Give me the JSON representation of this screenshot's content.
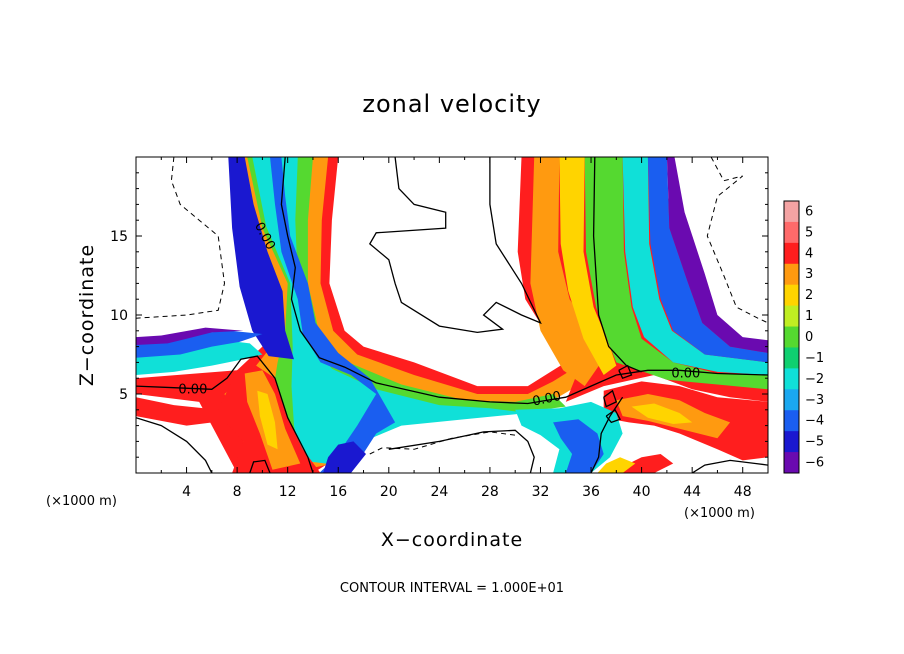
{
  "chart_data": {
    "type": "heatmap",
    "title": "zonal velocity",
    "xlabel": "X−coordinate",
    "ylabel": "Z−coordinate",
    "x_unit_left": "(×1000 m)",
    "x_unit_right": "(×1000 m)",
    "footer": "CONTOUR INTERVAL = 1.000E+01",
    "xlim": [
      0,
      50
    ],
    "ylim": [
      0,
      20
    ],
    "x_ticks": [
      "4",
      "8",
      "12",
      "16",
      "20",
      "24",
      "28",
      "32",
      "36",
      "40",
      "44",
      "48"
    ],
    "y_ticks": [
      "5",
      "10",
      "15"
    ],
    "colorbar_ticks": [
      "6",
      "5",
      "4",
      "3",
      "2",
      "1",
      "0",
      "−1",
      "−2",
      "−3",
      "−4",
      "−5",
      "−6"
    ],
    "colorbar_range": [
      -6,
      6
    ],
    "contour_labels": [
      {
        "text": "0.00",
        "x": 10.2,
        "z": 15
      },
      {
        "text": "0.00",
        "x": 4.5,
        "z": 5.3
      },
      {
        "text": "0.00",
        "x": 32.5,
        "z": 4.7
      },
      {
        "text": "0.00",
        "x": 43.5,
        "z": 6.3
      }
    ],
    "colors": {
      "6": "#f4a3a3",
      "5": "#ff6a6a",
      "4": "#ff1e1e",
      "3": "#ff9a10",
      "2": "#ffd400",
      "1": "#c0ee22",
      "0": "#55d930",
      "-1": "#10d070",
      "-2": "#10e0d8",
      "-3": "#1aa8f0",
      "-4": "#1a5ef0",
      "-5": "#1a18d0",
      "-6": "#6a0ab0"
    }
  }
}
